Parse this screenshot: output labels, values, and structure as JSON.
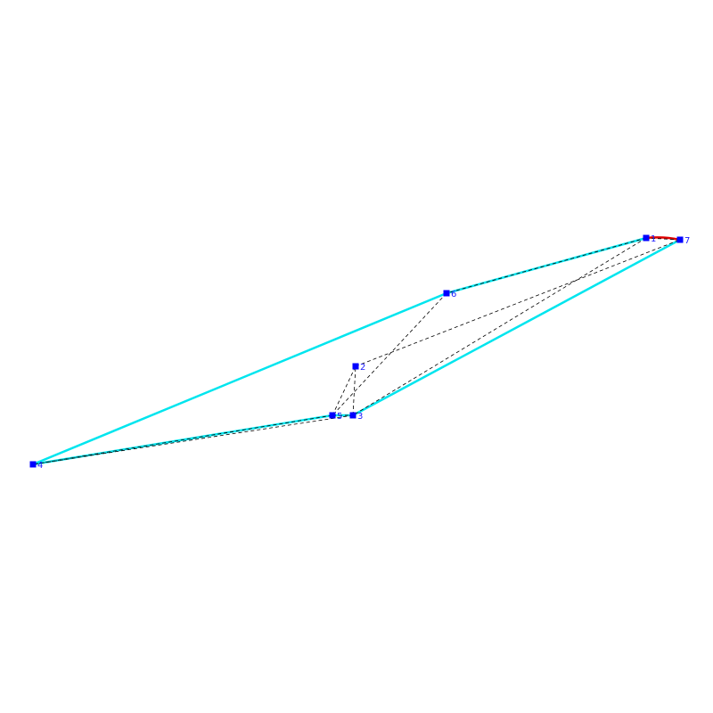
{
  "colors": {
    "background": "#ffffff",
    "hull_edge": "#00e5ee",
    "highlight_edge": "#e00000",
    "dashed_edge": "#000000",
    "node_fill": "#0000ff",
    "label": "#1a1aff"
  },
  "nodes": [
    {
      "id": "1",
      "label": "1"
    },
    {
      "id": "2",
      "label": "2"
    },
    {
      "id": "3",
      "label": "3"
    },
    {
      "id": "4",
      "label": "4"
    },
    {
      "id": "5",
      "label": "5"
    },
    {
      "id": "6",
      "label": "6"
    },
    {
      "id": "7",
      "label": "7"
    }
  ],
  "hull_edges": [
    [
      "4",
      "6"
    ],
    [
      "6",
      "1"
    ],
    [
      "7",
      "3"
    ],
    [
      "3",
      "5"
    ],
    [
      "5",
      "4"
    ]
  ],
  "highlight_edges": [
    [
      "1",
      "7"
    ]
  ],
  "dashed_edges": [
    [
      "1",
      "6"
    ],
    [
      "6",
      "5"
    ],
    [
      "5",
      "2"
    ],
    [
      "2",
      "7"
    ],
    [
      "7",
      "1"
    ],
    [
      "1",
      "3"
    ],
    [
      "3",
      "2"
    ],
    [
      "3",
      "4"
    ],
    [
      "4",
      "5"
    ],
    [
      "5",
      "3"
    ]
  ]
}
